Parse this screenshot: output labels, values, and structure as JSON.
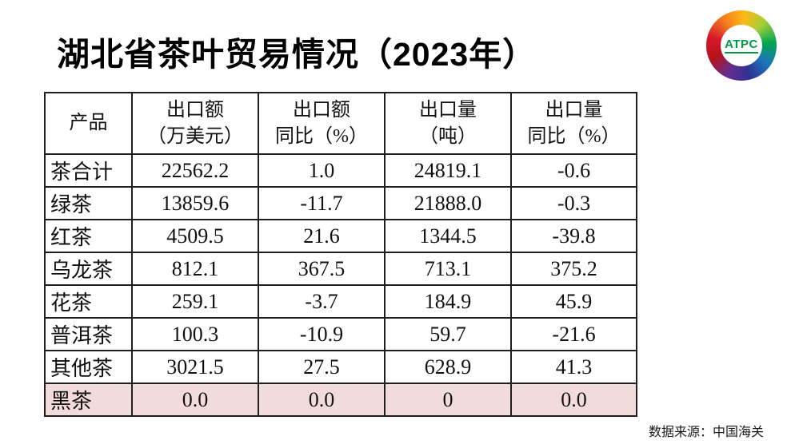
{
  "page": {
    "title": "湖北省茶叶贸易情况（2023年）",
    "source_note": "数据来源：中国海关"
  },
  "logo": {
    "text": "ATPC",
    "text_color": "#009a44",
    "ring_colors": [
      "#d7182a",
      "#f47b20",
      "#fdb913",
      "#a6ce39",
      "#00a651",
      "#1b75bb",
      "#2e3192",
      "#662d91",
      "#b5121b",
      "#d7182a"
    ]
  },
  "chart_data": {
    "type": "table",
    "title": "湖北省茶叶贸易情况（2023年）",
    "columns": [
      "产品",
      "出口额\n（万美元）",
      "出口额\n同比（%）",
      "出口量\n（吨）",
      "出口量\n同比（%）"
    ],
    "rows": [
      {
        "cells": [
          "茶合计",
          "22562.2",
          "1.0",
          "24819.1",
          "-0.6"
        ],
        "highlight": false
      },
      {
        "cells": [
          "绿茶",
          "13859.6",
          "-11.7",
          "21888.0",
          "-0.3"
        ],
        "highlight": false
      },
      {
        "cells": [
          "红茶",
          "4509.5",
          "21.6",
          "1344.5",
          "-39.8"
        ],
        "highlight": false
      },
      {
        "cells": [
          "乌龙茶",
          "812.1",
          "367.5",
          "713.1",
          "375.2"
        ],
        "highlight": false
      },
      {
        "cells": [
          "花茶",
          "259.1",
          "-3.7",
          "184.9",
          "45.9"
        ],
        "highlight": false
      },
      {
        "cells": [
          "普洱茶",
          "100.3",
          "-10.9",
          "59.7",
          "-21.6"
        ],
        "highlight": false
      },
      {
        "cells": [
          "其他茶",
          "3021.5",
          "27.5",
          "628.9",
          "41.3"
        ],
        "highlight": false
      },
      {
        "cells": [
          "黑茶",
          "0.0",
          "0.0",
          "0",
          "0.0"
        ],
        "highlight": true
      }
    ],
    "highlight_color": "#f2dcdb",
    "source": "数据来源：中国海关"
  }
}
